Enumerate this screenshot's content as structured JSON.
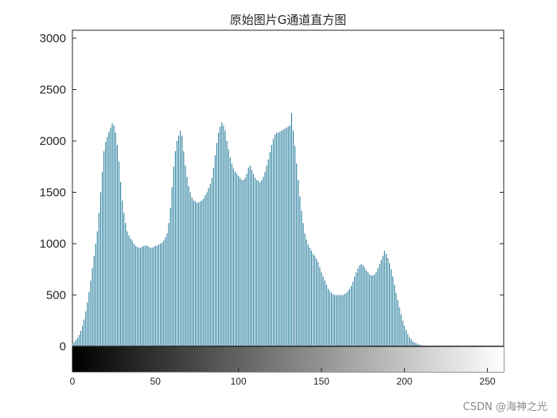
{
  "chart_data": {
    "type": "bar",
    "title": "原始图片G通道直方图",
    "xlabel": "",
    "ylabel": "",
    "xlim": [
      0,
      255
    ],
    "ylim": [
      0,
      3000
    ],
    "yticks": [
      0,
      500,
      1000,
      1500,
      2000,
      2500,
      3000
    ],
    "xticks": [
      0,
      50,
      100,
      150,
      200,
      250
    ],
    "grid": false,
    "legend": "none",
    "bar_color": "#2a7f9e",
    "colorbar": "gray",
    "x_start": 0,
    "values": [
      30,
      40,
      60,
      80,
      110,
      150,
      200,
      260,
      340,
      430,
      530,
      640,
      760,
      880,
      1000,
      1120,
      1300,
      1500,
      1700,
      1900,
      1990,
      2040,
      2090,
      2130,
      2170,
      2150,
      2080,
      1960,
      1800,
      1600,
      1420,
      1300,
      1200,
      1120,
      1080,
      1050,
      1030,
      1000,
      980,
      970,
      960,
      960,
      970,
      980,
      980,
      980,
      970,
      960,
      960,
      970,
      980,
      980,
      990,
      1000,
      1010,
      1030,
      1060,
      1100,
      1200,
      1350,
      1550,
      1750,
      1900,
      2000,
      2050,
      2100,
      2050,
      1900,
      1760,
      1650,
      1560,
      1500,
      1450,
      1420,
      1410,
      1400,
      1400,
      1410,
      1420,
      1440,
      1470,
      1500,
      1540,
      1580,
      1640,
      1740,
      1860,
      1980,
      2080,
      2140,
      2180,
      2150,
      2100,
      2000,
      1920,
      1840,
      1780,
      1730,
      1700,
      1680,
      1660,
      1640,
      1620,
      1620,
      1640,
      1680,
      1740,
      1760,
      1720,
      1680,
      1640,
      1620,
      1610,
      1600,
      1620,
      1650,
      1700,
      1760,
      1820,
      1890,
      1960,
      2020,
      2060,
      2080,
      2080,
      2090,
      2100,
      2110,
      2120,
      2130,
      2140,
      2150,
      2270,
      2100,
      1950,
      1780,
      1620,
      1460,
      1320,
      1200,
      1100,
      1040,
      990,
      960,
      930,
      900,
      880,
      850,
      820,
      770,
      720,
      680,
      640,
      600,
      560,
      540,
      520,
      510,
      500,
      500,
      500,
      500,
      500,
      500,
      510,
      520,
      540,
      560,
      590,
      630,
      680,
      720,
      760,
      790,
      800,
      790,
      770,
      740,
      720,
      700,
      690,
      690,
      700,
      720,
      760,
      800,
      840,
      880,
      930,
      900,
      860,
      810,
      750,
      680,
      600,
      520,
      450,
      380,
      310,
      250,
      200,
      160,
      120,
      90,
      70,
      50,
      40,
      30,
      22,
      16,
      12,
      8,
      6,
      4,
      3,
      2,
      0,
      0,
      0,
      0,
      0,
      0,
      0,
      0,
      0,
      0,
      0,
      0,
      0,
      0,
      0,
      0,
      0,
      0,
      0,
      0,
      0,
      0,
      0,
      0,
      0,
      0,
      0,
      0,
      0,
      0,
      0,
      0,
      0
    ]
  },
  "watermark": "CSDN @海神之光"
}
